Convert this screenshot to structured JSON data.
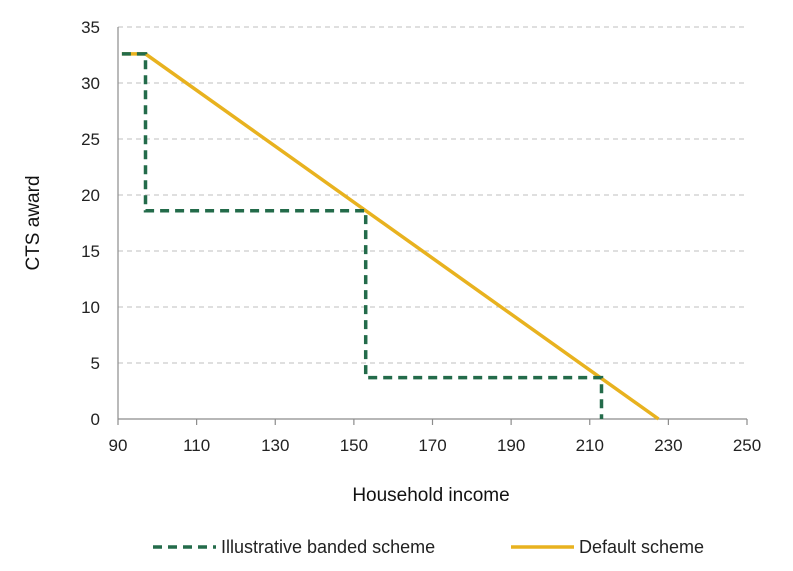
{
  "chart_data": {
    "type": "line",
    "xlabel": "Household income",
    "ylabel": "CTS award",
    "xlim": [
      90,
      250
    ],
    "ylim": [
      0,
      35
    ],
    "xticks": [
      "90",
      "110",
      "130",
      "150",
      "170",
      "190",
      "210",
      "230",
      "250"
    ],
    "yticks": [
      "0",
      "5",
      "10",
      "15",
      "20",
      "25",
      "30",
      "35"
    ],
    "grid": "horizontal-dashed",
    "legend_position": "bottom",
    "series": [
      {
        "name": "Illustrative banded scheme",
        "color": "#236b4a",
        "style": "dashed",
        "points": [
          [
            91,
            32.6
          ],
          [
            97,
            32.6
          ],
          [
            97,
            18.6
          ],
          [
            153,
            18.6
          ],
          [
            153,
            3.7
          ],
          [
            213,
            3.7
          ],
          [
            213,
            0
          ]
        ]
      },
      {
        "name": "Default scheme",
        "color": "#e8b21f",
        "style": "solid",
        "points": [
          [
            91,
            32.6
          ],
          [
            97,
            32.6
          ],
          [
            227.5,
            0
          ]
        ]
      }
    ]
  }
}
